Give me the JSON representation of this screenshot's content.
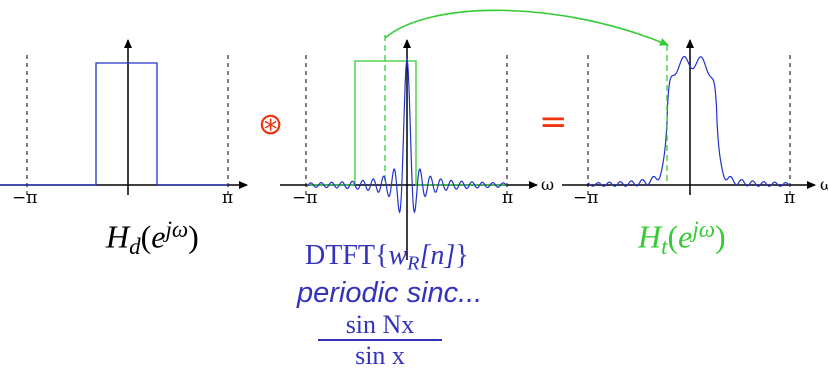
{
  "tick_labels": {
    "neg_pi": "−π",
    "pi": "π",
    "omega": "ω"
  },
  "operators": {
    "convolve": "⊛",
    "equals": "="
  },
  "labels": {
    "hd": {
      "H": "H",
      "d": "d",
      "open": "(",
      "e": "e",
      "jw": "jω",
      "close": ")"
    },
    "ht": {
      "H": "H",
      "t": "t",
      "open": "(",
      "e": "e",
      "jw": "jω",
      "close": ")"
    },
    "dtft": {
      "prefix": "DTFT{",
      "w": "w",
      "R": "R",
      "n_part": "[n]",
      "suffix": "}"
    },
    "periodic": "periodic sinc...",
    "fraction": {
      "numerator": "sin Nx",
      "denominator": "sin x"
    }
  },
  "colors": {
    "black": "#000000",
    "blue": "#2233cc",
    "green": "#33cc33",
    "red": "#ee3311"
  }
}
